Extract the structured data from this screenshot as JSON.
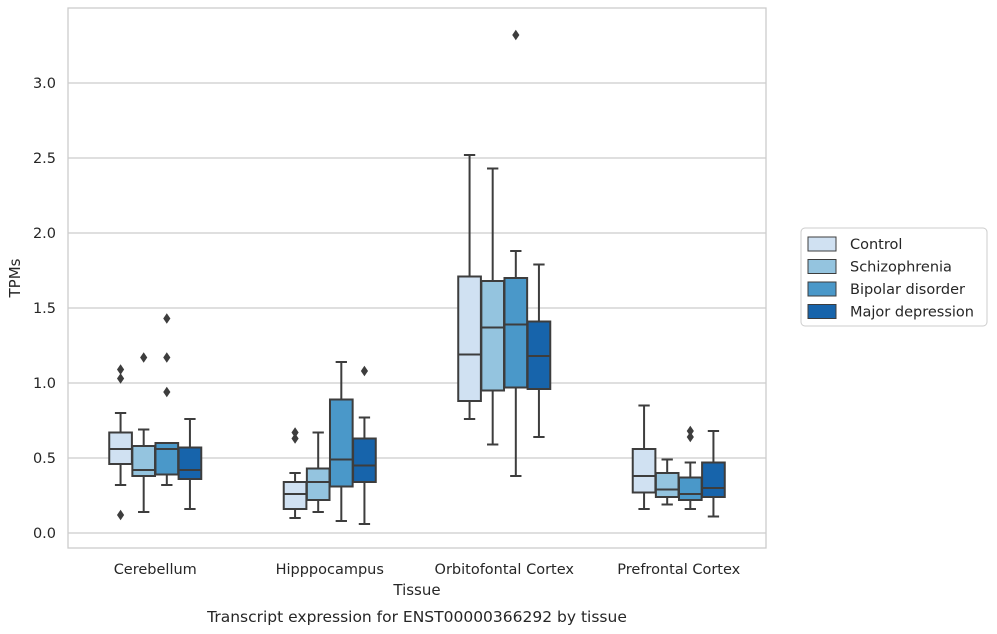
{
  "chart_data": {
    "type": "box",
    "xlabel": "Tissue",
    "ylabel": "TPMs",
    "caption": "Transcript expression for ENST00000366292 by tissue",
    "categories": [
      "Cerebellum",
      "Hipppocampus",
      "Orbitofontal Cortex",
      "Prefrontal Cortex"
    ],
    "ylim": [
      -0.1,
      3.5
    ],
    "yticks": [
      "0.0",
      "0.5",
      "1.0",
      "1.5",
      "2.0",
      "2.5",
      "3.0"
    ],
    "grid": "horizontal",
    "legend_position": "right",
    "series": [
      {
        "name": "Control",
        "color": "#d0e1f2",
        "boxes": [
          {
            "whisker_low": 0.32,
            "q1": 0.46,
            "median": 0.56,
            "q3": 0.67,
            "whisker_high": 0.8,
            "outliers": [
              0.12,
              1.03,
              1.09
            ]
          },
          {
            "whisker_low": 0.1,
            "q1": 0.16,
            "median": 0.26,
            "q3": 0.34,
            "whisker_high": 0.4,
            "outliers": [
              0.63,
              0.67
            ]
          },
          {
            "whisker_low": 0.76,
            "q1": 0.88,
            "median": 1.19,
            "q3": 1.71,
            "whisker_high": 2.52,
            "outliers": []
          },
          {
            "whisker_low": 0.16,
            "q1": 0.27,
            "median": 0.38,
            "q3": 0.56,
            "whisker_high": 0.85,
            "outliers": []
          }
        ]
      },
      {
        "name": "Schizophrenia",
        "color": "#94c4df",
        "boxes": [
          {
            "whisker_low": 0.14,
            "q1": 0.38,
            "median": 0.42,
            "q3": 0.58,
            "whisker_high": 0.69,
            "outliers": [
              1.17
            ]
          },
          {
            "whisker_low": 0.14,
            "q1": 0.22,
            "median": 0.34,
            "q3": 0.43,
            "whisker_high": 0.67,
            "outliers": []
          },
          {
            "whisker_low": 0.59,
            "q1": 0.95,
            "median": 1.37,
            "q3": 1.68,
            "whisker_high": 2.43,
            "outliers": []
          },
          {
            "whisker_low": 0.19,
            "q1": 0.24,
            "median": 0.29,
            "q3": 0.4,
            "whisker_high": 0.49,
            "outliers": []
          }
        ]
      },
      {
        "name": "Bipolar disorder",
        "color": "#4a98c9",
        "boxes": [
          {
            "whisker_low": 0.32,
            "q1": 0.39,
            "median": 0.56,
            "q3": 0.6,
            "whisker_high": 0.6,
            "outliers": [
              0.94,
              1.17,
              1.43
            ]
          },
          {
            "whisker_low": 0.08,
            "q1": 0.31,
            "median": 0.49,
            "q3": 0.89,
            "whisker_high": 1.14,
            "outliers": []
          },
          {
            "whisker_low": 0.38,
            "q1": 0.97,
            "median": 1.39,
            "q3": 1.7,
            "whisker_high": 1.88,
            "outliers": [
              3.32
            ]
          },
          {
            "whisker_low": 0.16,
            "q1": 0.22,
            "median": 0.26,
            "q3": 0.37,
            "whisker_high": 0.47,
            "outliers": [
              0.64,
              0.68
            ]
          }
        ]
      },
      {
        "name": "Major depression",
        "color": "#1764ab",
        "boxes": [
          {
            "whisker_low": 0.16,
            "q1": 0.36,
            "median": 0.42,
            "q3": 0.57,
            "whisker_high": 0.76,
            "outliers": []
          },
          {
            "whisker_low": 0.06,
            "q1": 0.34,
            "median": 0.45,
            "q3": 0.63,
            "whisker_high": 0.77,
            "outliers": [
              1.08
            ]
          },
          {
            "whisker_low": 0.64,
            "q1": 0.96,
            "median": 1.18,
            "q3": 1.41,
            "whisker_high": 1.79,
            "outliers": []
          },
          {
            "whisker_low": 0.11,
            "q1": 0.24,
            "median": 0.3,
            "q3": 0.47,
            "whisker_high": 0.68,
            "outliers": []
          }
        ]
      }
    ]
  }
}
